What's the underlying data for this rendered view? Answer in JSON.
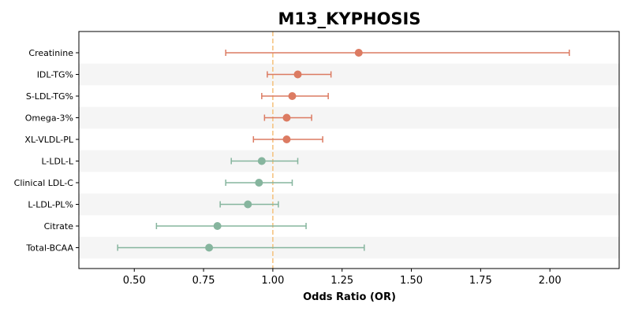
{
  "chart_data": {
    "type": "forest",
    "title": "M13_KYPHOSIS",
    "xlabel": "Odds Ratio (OR)",
    "xlim": [
      0.3,
      2.25
    ],
    "xticks": [
      "0.50",
      "0.75",
      "1.00",
      "1.25",
      "1.50",
      "1.75",
      "2.00"
    ],
    "reference_line": 1.0,
    "reference_color": "#f5c07a",
    "band_color": "#f5f5f5",
    "colors": {
      "positive": "#dc7b62",
      "negative": "#86b59e"
    },
    "rows": [
      {
        "label": "Creatinine",
        "or": 1.31,
        "lower": 0.83,
        "upper": 2.07,
        "group": "positive"
      },
      {
        "label": "IDL-TG%",
        "or": 1.09,
        "lower": 0.98,
        "upper": 1.21,
        "group": "positive"
      },
      {
        "label": "S-LDL-TG%",
        "or": 1.07,
        "lower": 0.96,
        "upper": 1.2,
        "group": "positive"
      },
      {
        "label": "Omega-3%",
        "or": 1.05,
        "lower": 0.97,
        "upper": 1.14,
        "group": "positive"
      },
      {
        "label": "XL-VLDL-PL",
        "or": 1.05,
        "lower": 0.93,
        "upper": 1.18,
        "group": "positive"
      },
      {
        "label": "L-LDL-L",
        "or": 0.96,
        "lower": 0.85,
        "upper": 1.09,
        "group": "negative"
      },
      {
        "label": "Clinical LDL-C",
        "or": 0.95,
        "lower": 0.83,
        "upper": 1.07,
        "group": "negative"
      },
      {
        "label": "L-LDL-PL%",
        "or": 0.91,
        "lower": 0.81,
        "upper": 1.02,
        "group": "negative"
      },
      {
        "label": "Citrate",
        "or": 0.8,
        "lower": 0.58,
        "upper": 1.12,
        "group": "negative"
      },
      {
        "label": "Total-BCAA",
        "or": 0.77,
        "lower": 0.44,
        "upper": 1.33,
        "group": "negative"
      }
    ]
  }
}
